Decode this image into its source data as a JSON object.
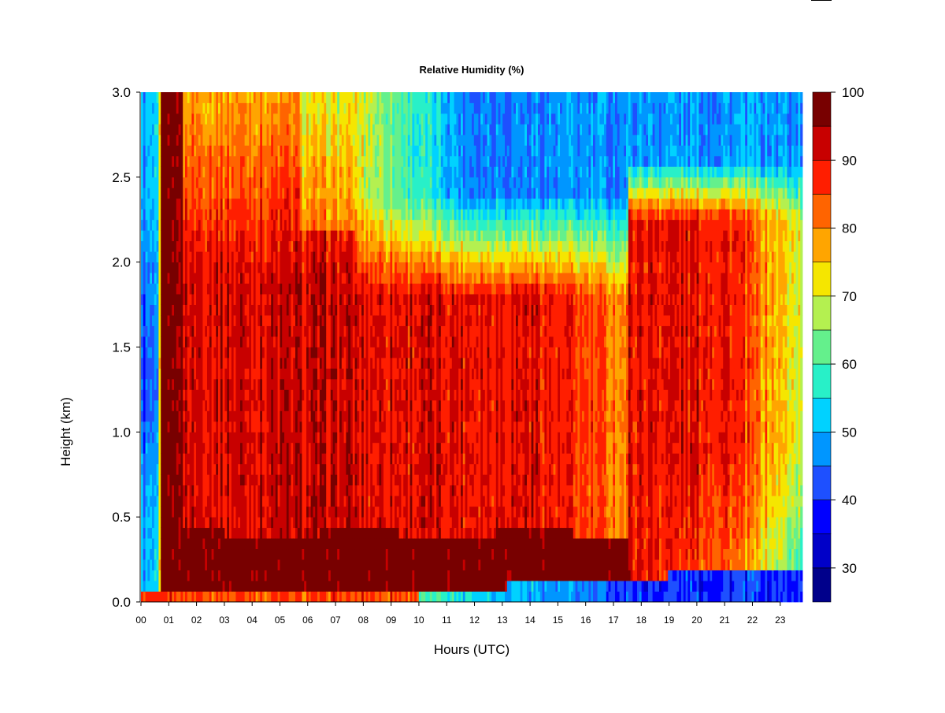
{
  "chart_data": {
    "type": "heatmap",
    "title": "Relative Humidity (%)",
    "xlabel": "Hours (UTC)",
    "ylabel": "Height (km)",
    "x_ticks": [
      "00",
      "01",
      "02",
      "03",
      "04",
      "05",
      "06",
      "07",
      "08",
      "09",
      "10",
      "11",
      "12",
      "13",
      "14",
      "15",
      "16",
      "17",
      "18",
      "19",
      "20",
      "21",
      "22",
      "23"
    ],
    "x_range": [
      0,
      23.8
    ],
    "y_ticks": [
      "0.0",
      "0.5",
      "1.0",
      "1.5",
      "2.0",
      "2.5",
      "3.0"
    ],
    "y_range": [
      0,
      3.0
    ],
    "colorbar": {
      "ticks": [
        "30",
        "40",
        "50",
        "60",
        "70",
        "80",
        "90",
        "100"
      ],
      "range": [
        25,
        100
      ],
      "levels": [
        25,
        30,
        35,
        40,
        45,
        50,
        55,
        60,
        65,
        70,
        75,
        80,
        85,
        90,
        95,
        100
      ],
      "colors": [
        "#00008b",
        "#0000c8",
        "#0000ff",
        "#1e50ff",
        "#0096ff",
        "#00d2ff",
        "#28f0c8",
        "#64f08c",
        "#b4f050",
        "#f5e600",
        "#ffa500",
        "#ff6400",
        "#ff1e00",
        "#c80000",
        "#780000"
      ]
    },
    "grid": false,
    "legend": "colorbar-right"
  }
}
